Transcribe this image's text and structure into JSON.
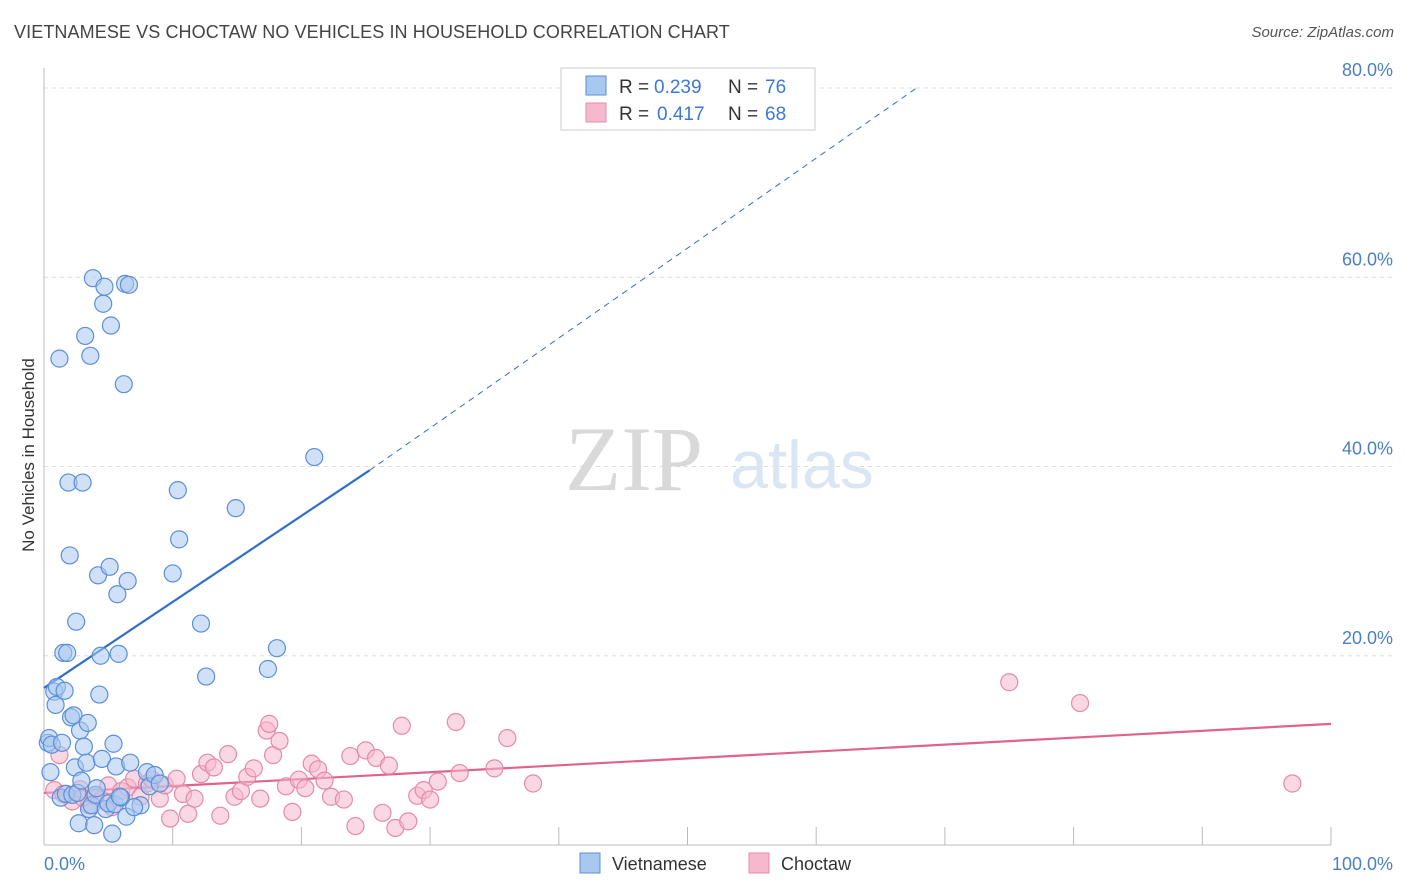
{
  "title": "VIETNAMESE VS CHOCTAW NO VEHICLES IN HOUSEHOLD CORRELATION CHART",
  "source": "Source: ZipAtlas.com",
  "watermark": {
    "zip": "ZIP",
    "atlas": "atlas"
  },
  "colors": {
    "blue_fill": "#a9c8f0",
    "blue_stroke": "#5b8fd6",
    "blue_line": "#2f6ec9",
    "pink_fill": "#f6b8cc",
    "pink_stroke": "#e58aa8",
    "pink_line": "#e0628f",
    "grid": "#dddddd",
    "axis_label": "#4a7fc6"
  },
  "legend": {
    "rows": [
      {
        "r_label": "R =",
        "r_value": "0.239",
        "n_label": "N =",
        "n_value": "76"
      },
      {
        "r_label": "R =",
        "r_value": "0.417",
        "n_label": "N =",
        "n_value": "68"
      }
    ]
  },
  "chart_data": {
    "type": "scatter",
    "xlabel": "",
    "ylabel": "No Vehicles in Household",
    "xlim": [
      0,
      100
    ],
    "ylim": [
      0,
      80
    ],
    "x_tick_labels": [
      "0.0%",
      "100.0%"
    ],
    "y_ticks": [
      20,
      40,
      60,
      80
    ],
    "y_tick_labels": [
      "20.0%",
      "40.0%",
      "60.0%",
      "80.0%"
    ],
    "grid": true,
    "series": [
      {
        "name": "Vietnamese",
        "color_key": "blue",
        "trend": {
          "x0": 0,
          "y0": 16.6,
          "x1": 25.3,
          "y1": 39.6,
          "dash_to_x": 67.8,
          "dash_to_y": 80.0
        },
        "points": [
          [
            0.3,
            10.8
          ],
          [
            0.4,
            11.3
          ],
          [
            0.5,
            7.7
          ],
          [
            0.6,
            10.6
          ],
          [
            0.8,
            16.2
          ],
          [
            0.9,
            14.8
          ],
          [
            1.0,
            16.7
          ],
          [
            1.2,
            51.4
          ],
          [
            1.3,
            5.0
          ],
          [
            1.4,
            10.8
          ],
          [
            1.5,
            20.3
          ],
          [
            1.6,
            16.3
          ],
          [
            1.7,
            5.4
          ],
          [
            1.8,
            20.3
          ],
          [
            1.9,
            38.3
          ],
          [
            2.0,
            30.6
          ],
          [
            2.1,
            13.5
          ],
          [
            2.2,
            5.3
          ],
          [
            2.3,
            13.7
          ],
          [
            2.4,
            8.2
          ],
          [
            2.5,
            23.6
          ],
          [
            2.6,
            5.5
          ],
          [
            2.7,
            2.3
          ],
          [
            2.8,
            12.1
          ],
          [
            2.9,
            6.8
          ],
          [
            3.0,
            38.3
          ],
          [
            3.1,
            10.4
          ],
          [
            3.2,
            53.8
          ],
          [
            3.3,
            8.7
          ],
          [
            3.4,
            12.9
          ],
          [
            3.5,
            3.8
          ],
          [
            3.6,
            51.7
          ],
          [
            3.7,
            4.2
          ],
          [
            3.8,
            59.9
          ],
          [
            3.9,
            2.1
          ],
          [
            4.0,
            5.3
          ],
          [
            4.1,
            6.0
          ],
          [
            4.2,
            28.5
          ],
          [
            4.3,
            15.9
          ],
          [
            4.4,
            20.0
          ],
          [
            4.5,
            9.1
          ],
          [
            4.6,
            57.2
          ],
          [
            4.7,
            59.0
          ],
          [
            4.8,
            3.8
          ],
          [
            5.0,
            4.4
          ],
          [
            5.1,
            29.4
          ],
          [
            5.2,
            54.9
          ],
          [
            5.3,
            1.2
          ],
          [
            5.4,
            10.7
          ],
          [
            5.5,
            4.3
          ],
          [
            5.6,
            8.3
          ],
          [
            5.7,
            26.5
          ],
          [
            5.8,
            20.2
          ],
          [
            6.0,
            5.0
          ],
          [
            6.2,
            48.7
          ],
          [
            6.3,
            59.3
          ],
          [
            6.4,
            3.0
          ],
          [
            6.5,
            27.9
          ],
          [
            6.6,
            59.2
          ],
          [
            7.5,
            4.2
          ],
          [
            8.0,
            7.7
          ],
          [
            8.2,
            6.2
          ],
          [
            10.0,
            28.7
          ],
          [
            10.4,
            37.5
          ],
          [
            10.5,
            32.3
          ],
          [
            12.2,
            23.4
          ],
          [
            12.6,
            17.8
          ],
          [
            14.9,
            35.6
          ],
          [
            17.4,
            18.6
          ],
          [
            18.1,
            20.8
          ],
          [
            21.0,
            41.0
          ],
          [
            8.6,
            7.4
          ],
          [
            6.7,
            8.7
          ],
          [
            9.0,
            6.5
          ],
          [
            5.9,
            5.1
          ],
          [
            7.0,
            4.0
          ]
        ]
      },
      {
        "name": "Choctaw",
        "color_key": "pink",
        "trend": {
          "x0": 0,
          "y0": 5.5,
          "x1": 100,
          "y1": 12.8
        },
        "points": [
          [
            0.8,
            5.8
          ],
          [
            1.5,
            5.4
          ],
          [
            2.2,
            4.6
          ],
          [
            2.8,
            5.9
          ],
          [
            3.5,
            4.2
          ],
          [
            4.0,
            5.1
          ],
          [
            4.5,
            4.8
          ],
          [
            5.0,
            6.3
          ],
          [
            5.3,
            4.0
          ],
          [
            6.0,
            5.7
          ],
          [
            6.5,
            6.1
          ],
          [
            7.0,
            7.0
          ],
          [
            7.5,
            5.1
          ],
          [
            8.0,
            6.5
          ],
          [
            8.4,
            6.9
          ],
          [
            9.0,
            4.9
          ],
          [
            9.4,
            6.3
          ],
          [
            9.8,
            2.8
          ],
          [
            10.3,
            7.0
          ],
          [
            10.8,
            5.4
          ],
          [
            11.2,
            3.3
          ],
          [
            11.7,
            4.9
          ],
          [
            12.2,
            7.5
          ],
          [
            12.7,
            8.7
          ],
          [
            13.2,
            8.2
          ],
          [
            13.7,
            3.1
          ],
          [
            14.3,
            9.6
          ],
          [
            14.8,
            5.1
          ],
          [
            15.3,
            5.7
          ],
          [
            15.8,
            7.2
          ],
          [
            16.3,
            8.1
          ],
          [
            16.8,
            4.9
          ],
          [
            17.3,
            12.1
          ],
          [
            17.5,
            12.8
          ],
          [
            17.8,
            9.5
          ],
          [
            18.3,
            11.0
          ],
          [
            18.8,
            6.2
          ],
          [
            19.3,
            3.5
          ],
          [
            19.8,
            6.9
          ],
          [
            20.3,
            6.0
          ],
          [
            20.8,
            8.6
          ],
          [
            21.3,
            8.0
          ],
          [
            21.8,
            6.8
          ],
          [
            22.3,
            5.1
          ],
          [
            23.3,
            4.8
          ],
          [
            23.8,
            9.4
          ],
          [
            24.2,
            2.0
          ],
          [
            25.0,
            10.0
          ],
          [
            25.8,
            9.2
          ],
          [
            26.3,
            3.4
          ],
          [
            26.8,
            8.4
          ],
          [
            27.3,
            1.8
          ],
          [
            27.8,
            12.6
          ],
          [
            28.3,
            2.5
          ],
          [
            29.0,
            5.2
          ],
          [
            29.5,
            5.8
          ],
          [
            30.0,
            4.8
          ],
          [
            30.6,
            6.7
          ],
          [
            32.0,
            13.0
          ],
          [
            32.3,
            7.6
          ],
          [
            35.0,
            8.1
          ],
          [
            36.0,
            11.3
          ],
          [
            38.0,
            6.5
          ],
          [
            75.0,
            17.2
          ],
          [
            80.5,
            15.0
          ],
          [
            97.0,
            6.5
          ],
          [
            3.0,
            5.0
          ],
          [
            1.2,
            9.5
          ]
        ]
      }
    ]
  },
  "bottom_legend": {
    "items": [
      "Vietnamese",
      "Choctaw"
    ]
  }
}
